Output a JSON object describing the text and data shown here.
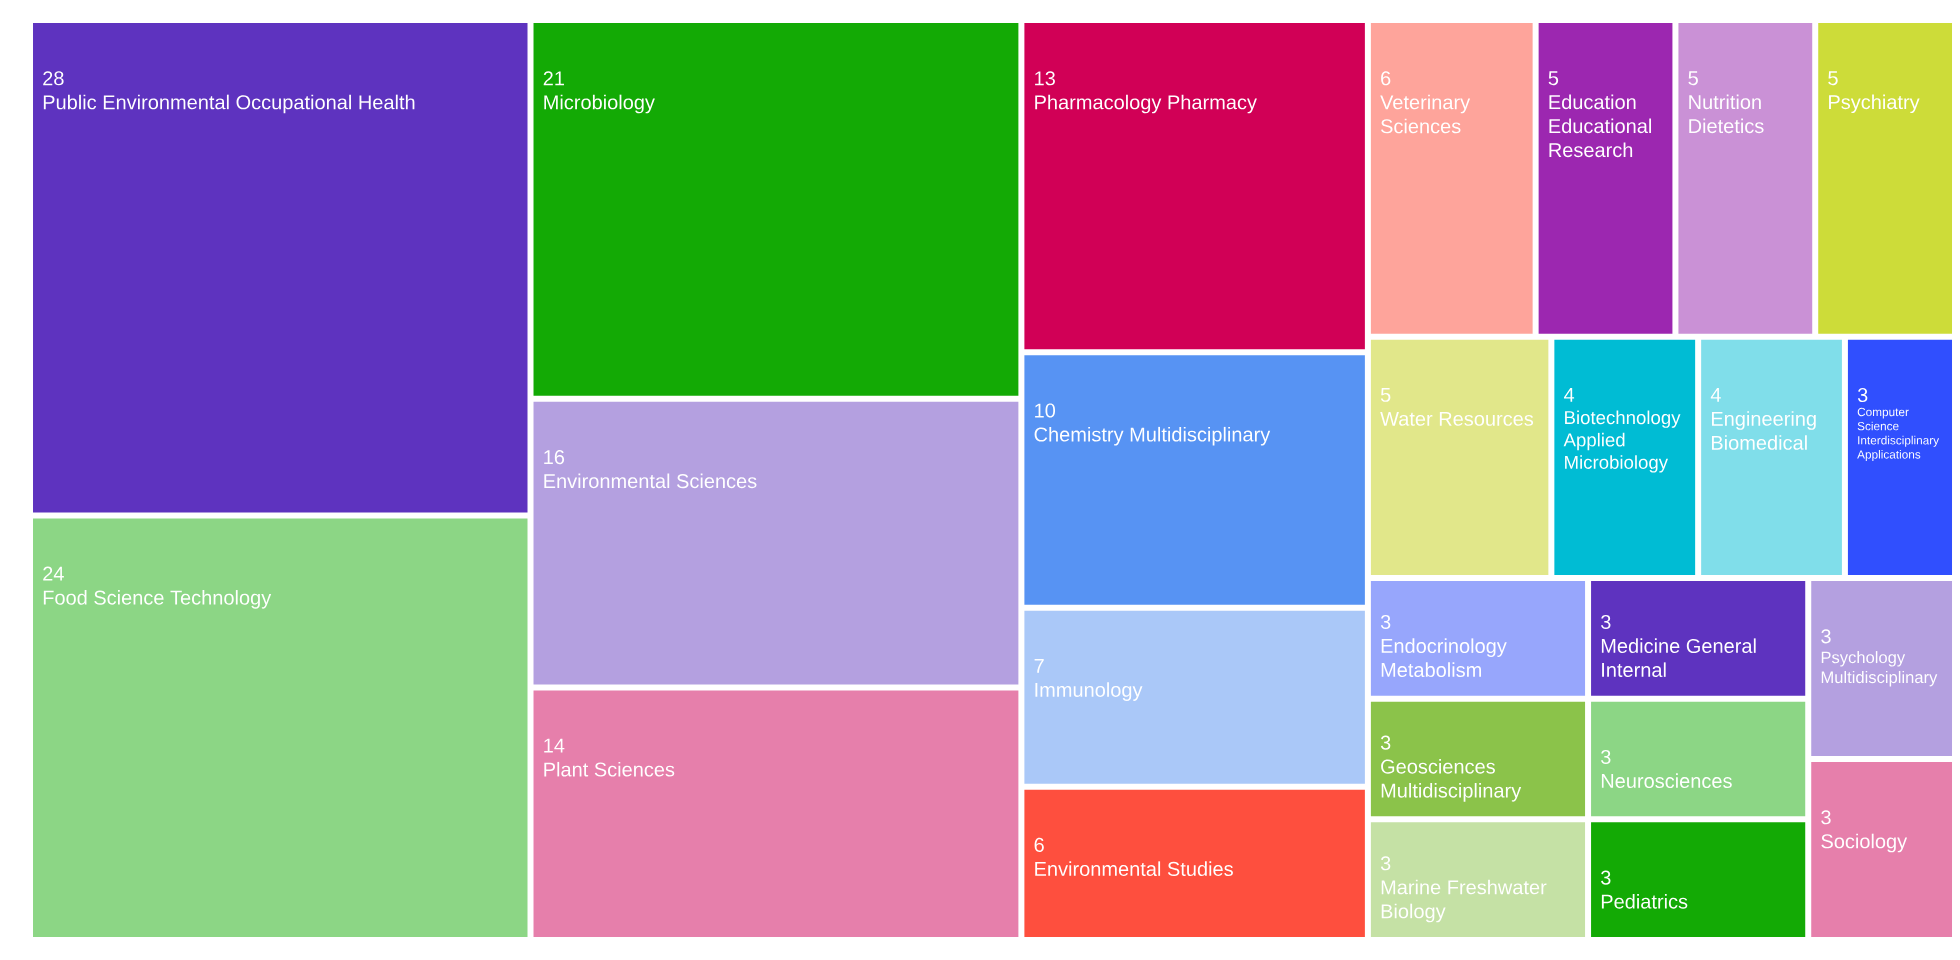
{
  "chart_data": {
    "type": "other",
    "data_labels": true,
    "categories": [
      "Public Environmental Occupational Health",
      "Food Science Technology",
      "Microbiology",
      "Environmental Sciences",
      "Plant Sciences",
      "Pharmacology Pharmacy",
      "Chemistry Multidisciplinary",
      "Immunology",
      "Environmental Studies",
      "Veterinary Sciences",
      "Education Educational Research",
      "Nutrition Dietetics",
      "Psychiatry",
      "Water Resources",
      "Biotechnology Applied Microbiology",
      "Engineering Biomedical",
      "Computer Science Interdisciplinary Applications",
      "Endocrinology Metabolism",
      "Geosciences Multidisciplinary",
      "Marine Freshwater Biology",
      "Medicine General Internal",
      "Neurosciences",
      "Pediatrics",
      "Psychology Multidisciplinary",
      "Sociology"
    ],
    "values": [
      28,
      24,
      21,
      16,
      14,
      13,
      10,
      7,
      6,
      6,
      5,
      5,
      5,
      5,
      4,
      4,
      3,
      3,
      3,
      3,
      3,
      3,
      3,
      3,
      3
    ],
    "colors": [
      "#5e33bf",
      "#8cd685",
      "#13aa05",
      "#b4a0e0",
      "#e67fab",
      "#d10056",
      "#5793f3",
      "#aac8f8",
      "#fe4f3e",
      "#fea49b",
      "#9c27b0",
      "#ca91d6",
      "#cddc39",
      "#e1e78a",
      "#00bcd4",
      "#80deea",
      "#304ffe",
      "#97a6fc",
      "#8bc34a",
      "#c5e1a5",
      "#5e33bf",
      "#8cd685",
      "#13aa05",
      "#b4a0e0",
      "#e67fab"
    ]
  }
}
